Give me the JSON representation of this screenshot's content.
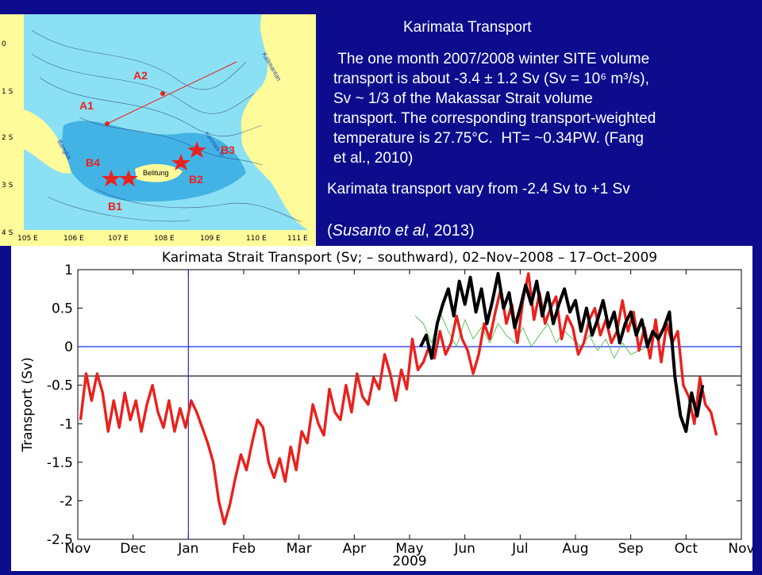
{
  "slide": {
    "title": "Karimata Transport",
    "summary_lines": [
      " The one month 2007/2008 winter SITE volume",
      "transport is about -3.4 ± 1.2 Sv (Sv = 10⁶ m³/s),",
      "Sv ~ 1/3 of the Makassar Strait volume",
      "transport. The corresponding transport-weighted",
      "temperature is 27.75°C.  HT= ~0.34PW. (Fang",
      "et al., 2010)"
    ],
    "range_text": "Karimata transport vary from  -2.4 Sv to +1 Sv",
    "citation_open": "(",
    "citation_authors": "Susanto et al",
    "citation_year": ", 2013)"
  },
  "map": {
    "mooring_labels": [
      "A2",
      "A1",
      "B4",
      "B3",
      "B2",
      "B1"
    ],
    "place_labels": [
      "Kalimantan",
      "Bangka",
      "Belitung",
      "Karimata St"
    ],
    "lat_labels": [
      "0",
      "1 S",
      "2 S",
      "3 S",
      "4 S"
    ],
    "lon_labels": [
      "105 E",
      "106 E",
      "107 E",
      "108 E",
      "109 E",
      "110 E",
      "111 E"
    ],
    "colors": {
      "land": "#fffb9a",
      "sea": "#8ce0f4",
      "shallow": "#43b3e6",
      "mooring": "#e8221e"
    }
  },
  "chart_data": {
    "type": "line",
    "title": "Karimata Strait Transport (Sv; – southward), 02–Nov–2008 – 17–Oct–2009",
    "ylabel": "Transport (Sv)",
    "xlabel": "2009",
    "x_ticks": [
      "Nov",
      "Dec",
      "Jan",
      "Feb",
      "Mar",
      "Apr",
      "May",
      "Jun",
      "Jul",
      "Aug",
      "Sep",
      "Oct",
      "Nov"
    ],
    "y_ticks": [
      "1",
      "0.5",
      "0",
      "-0.5",
      "-1",
      "-1.5",
      "-2",
      "-2.5"
    ],
    "ylim": [
      -2.5,
      1
    ],
    "xlim": [
      0,
      12
    ],
    "reference_lines": [
      {
        "y": 0,
        "color": "#1a2ee8"
      },
      {
        "y": -0.38,
        "color": "#000000"
      }
    ],
    "vertical_line": {
      "x": 2,
      "color": "#1a2ee8"
    },
    "grid": false,
    "series": [
      {
        "color": "#e8221e",
        "x": [
          0.05,
          0.15,
          0.25,
          0.35,
          0.45,
          0.55,
          0.65,
          0.75,
          0.85,
          0.95,
          1.05,
          1.15,
          1.25,
          1.35,
          1.45,
          1.55,
          1.65,
          1.75,
          1.85,
          1.95,
          2.05,
          2.15,
          2.25,
          2.35,
          2.45,
          2.55,
          2.65,
          2.75,
          2.85,
          2.95,
          3.05,
          3.15,
          3.25,
          3.35,
          3.45,
          3.55,
          3.65,
          3.75,
          3.85,
          3.95,
          4.05,
          4.15,
          4.25,
          4.35,
          4.45,
          4.55,
          4.65,
          4.75,
          4.85,
          4.95,
          5.05,
          5.15,
          5.25,
          5.35,
          5.45,
          5.55,
          5.65,
          5.75,
          5.85,
          5.95,
          6.05,
          6.15,
          6.25,
          6.35,
          6.45,
          6.55,
          6.65,
          6.75,
          6.85,
          6.95,
          7.05,
          7.15,
          7.25,
          7.35,
          7.45,
          7.55,
          7.65,
          7.75,
          7.85,
          7.95,
          8.05,
          8.15,
          8.25,
          8.35,
          8.45,
          8.55,
          8.65,
          8.75,
          8.85,
          8.95,
          9.05,
          9.15,
          9.25,
          9.35,
          9.45,
          9.55,
          9.65,
          9.75,
          9.85,
          9.95,
          10.05,
          10.15,
          10.25,
          10.35,
          10.45,
          10.55,
          10.65,
          10.75,
          10.85,
          10.95,
          11.05,
          11.15,
          11.25,
          11.35,
          11.45,
          11.55
        ],
        "values": [
          -0.95,
          -0.35,
          -0.7,
          -0.35,
          -0.6,
          -1.1,
          -0.7,
          -1.05,
          -0.6,
          -0.95,
          -0.7,
          -1.1,
          -0.75,
          -0.5,
          -0.85,
          -1.05,
          -0.7,
          -1.1,
          -0.8,
          -1.05,
          -0.7,
          -0.85,
          -1.05,
          -1.25,
          -1.5,
          -2.0,
          -2.3,
          -2.05,
          -1.7,
          -1.4,
          -1.6,
          -1.25,
          -0.95,
          -1.05,
          -1.5,
          -1.7,
          -1.45,
          -1.75,
          -1.3,
          -1.6,
          -1.1,
          -1.25,
          -0.75,
          -1.0,
          -1.15,
          -0.55,
          -0.85,
          -0.95,
          -0.5,
          -0.85,
          -0.35,
          -0.65,
          -0.75,
          -0.4,
          -0.55,
          -0.1,
          -0.35,
          -0.7,
          -0.3,
          -0.55,
          0.1,
          -0.3,
          -0.2,
          0.0,
          -0.15,
          0.2,
          -0.1,
          0.05,
          0.4,
          0.1,
          -0.05,
          -0.35,
          -0.1,
          0.3,
          0.1,
          0.45,
          0.75,
          0.3,
          0.55,
          0.05,
          0.6,
          0.95,
          0.35,
          0.7,
          0.3,
          0.5,
          0.65,
          0.1,
          0.4,
          0.25,
          -0.1,
          0.05,
          0.35,
          0.5,
          0.15,
          0.35,
          0.05,
          0.2,
          0.6,
          0.2,
          0.45,
          -0.05,
          0.25,
          -0.15,
          0.35,
          -0.2,
          0.3,
          0.05,
          0.2,
          -0.5,
          -0.65,
          -1.0,
          -0.4,
          -0.75,
          -0.85,
          -1.15
        ]
      },
      {
        "color": "#000000",
        "x": [
          6.2,
          6.3,
          6.4,
          6.5,
          6.6,
          6.7,
          6.8,
          6.9,
          7.0,
          7.1,
          7.2,
          7.3,
          7.4,
          7.5,
          7.6,
          7.7,
          7.8,
          7.9,
          8.0,
          8.1,
          8.2,
          8.3,
          8.4,
          8.5,
          8.6,
          8.7,
          8.8,
          8.9,
          9.0,
          9.1,
          9.2,
          9.3,
          9.4,
          9.5,
          9.6,
          9.7,
          9.8,
          9.9,
          10.0,
          10.1,
          10.2,
          10.3,
          10.4,
          10.5,
          10.6,
          10.7,
          10.8,
          10.9,
          11.0,
          11.1,
          11.2,
          11.3
        ],
        "values": [
          0.0,
          0.15,
          -0.15,
          0.3,
          0.55,
          0.75,
          0.4,
          0.85,
          0.55,
          0.9,
          0.45,
          0.75,
          0.3,
          0.6,
          0.95,
          0.5,
          0.7,
          0.25,
          0.5,
          0.8,
          0.55,
          0.85,
          0.4,
          0.7,
          0.3,
          0.55,
          0.75,
          0.45,
          0.6,
          0.2,
          0.5,
          0.15,
          0.35,
          0.6,
          0.25,
          0.45,
          0.05,
          0.3,
          0.45,
          0.15,
          0.35,
          0.0,
          0.2,
          0.1,
          0.25,
          0.45,
          -0.4,
          -0.9,
          -1.1,
          -0.6,
          -0.9,
          -0.5
        ]
      },
      {
        "color": "#5ec25e",
        "x": [
          6.1,
          6.25,
          6.4,
          6.55,
          6.7,
          6.85,
          7.0,
          7.15,
          7.3,
          7.45,
          7.6,
          7.75,
          7.9,
          8.05,
          8.2,
          8.35,
          8.5,
          8.65,
          8.8,
          8.95,
          9.1,
          9.25,
          9.4,
          9.55,
          9.7,
          9.85,
          10.0,
          10.15,
          10.3
        ],
        "values": [
          0.4,
          0.3,
          0.05,
          0.45,
          0.2,
          0.0,
          0.35,
          0.1,
          0.25,
          0.05,
          0.3,
          0.15,
          0.05,
          0.25,
          0.0,
          0.15,
          0.3,
          0.05,
          0.2,
          0.1,
          0.0,
          0.15,
          -0.05,
          0.1,
          -0.15,
          0.05,
          -0.1,
          -0.05,
          0.0
        ]
      }
    ]
  }
}
